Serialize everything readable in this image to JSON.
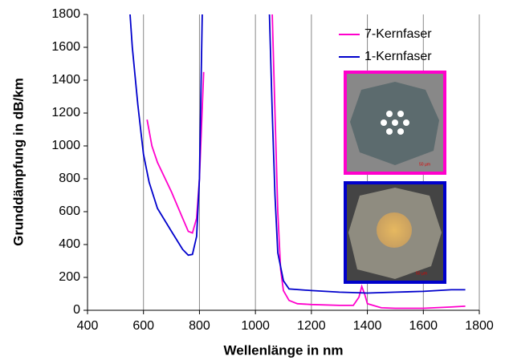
{
  "chart_data": {
    "type": "line",
    "xlabel": "Wellenlänge in nm",
    "ylabel": "Grunddämpfung in dB/km",
    "xlim": [
      400,
      1800
    ],
    "xticks": [
      400,
      600,
      800,
      1000,
      1200,
      1400,
      1600,
      1800
    ],
    "ylim": [
      0,
      1800
    ],
    "yticks": [
      0,
      200,
      400,
      600,
      800,
      1000,
      1200,
      1400,
      1600,
      1800
    ],
    "grid": "x",
    "legend": "upper right",
    "annotations": [
      "50 µm",
      "50 µm"
    ],
    "series": [
      {
        "name": "7-Kernfaser",
        "color": "#ff00cc",
        "x": [
          613,
          630,
          650,
          700,
          740,
          760,
          775,
          790,
          800,
          815,
          null,
          1060,
          1070,
          1080,
          1090,
          1100,
          1120,
          1150,
          1200,
          1300,
          1350,
          1370,
          1380,
          1390,
          1400,
          1450,
          1500,
          1600,
          1700,
          1750
        ],
        "values": [
          1160,
          1000,
          900,
          720,
          560,
          480,
          470,
          560,
          800,
          1450,
          null,
          1800,
          1200,
          600,
          250,
          120,
          60,
          40,
          35,
          30,
          30,
          80,
          145,
          100,
          40,
          15,
          12,
          12,
          20,
          25
        ]
      },
      {
        "name": "1-Kernfaser",
        "color": "#0000cc",
        "x": [
          552,
          560,
          580,
          600,
          620,
          650,
          700,
          740,
          760,
          775,
          790,
          800,
          810,
          null,
          1050,
          1060,
          1070,
          1080,
          1100,
          1120,
          1200,
          1300,
          1400,
          1500,
          1600,
          1700,
          1750
        ],
        "values": [
          1800,
          1600,
          1250,
          950,
          780,
          620,
          480,
          370,
          335,
          340,
          450,
          800,
          1800,
          null,
          1800,
          1200,
          700,
          350,
          180,
          130,
          120,
          110,
          105,
          110,
          115,
          125,
          125
        ]
      }
    ]
  }
}
